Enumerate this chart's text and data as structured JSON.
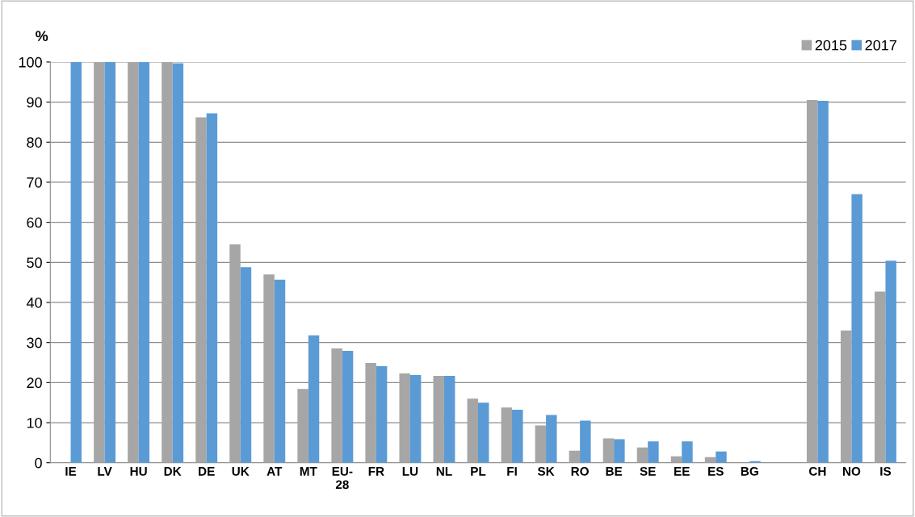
{
  "chart_data": {
    "type": "bar",
    "ylabel": "%",
    "categories": [
      "IE",
      "LV",
      "HU",
      "DK",
      "DE",
      "UK",
      "AT",
      "MT",
      "EU-\n28",
      "FR",
      "LU",
      "NL",
      "PL",
      "FI",
      "SK",
      "RO",
      "BE",
      "SE",
      "EE",
      "ES",
      "BG",
      null,
      "CH",
      "NO",
      "IS"
    ],
    "series": [
      {
        "name": "2015",
        "color": "#a6a6a6",
        "values": [
          null,
          100,
          100,
          100,
          86.2,
          54.5,
          47.0,
          18.4,
          28.5,
          24.9,
          22.3,
          21.7,
          16.0,
          13.8,
          9.3,
          3.0,
          6.1,
          3.8,
          1.6,
          1.4,
          0,
          null,
          90.5,
          33.0,
          42.7
        ]
      },
      {
        "name": "2017",
        "color": "#5b9bd5",
        "values": [
          100,
          100,
          100,
          99.7,
          87.2,
          48.8,
          45.7,
          31.8,
          27.9,
          24.1,
          21.9,
          21.7,
          15.0,
          13.2,
          11.9,
          10.5,
          5.9,
          5.3,
          5.3,
          2.8,
          0.4,
          null,
          90.3,
          67.0,
          50.4
        ]
      }
    ],
    "ylim": [
      0,
      100
    ],
    "yticks": [
      0,
      10,
      20,
      30,
      40,
      50,
      60,
      70,
      80,
      90,
      100
    ],
    "grid": "y",
    "legend": "top right"
  }
}
